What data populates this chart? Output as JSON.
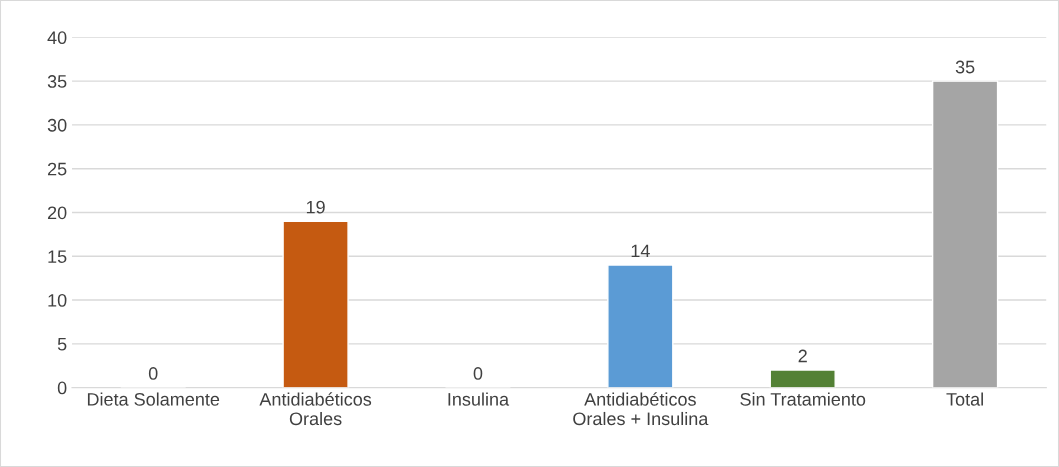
{
  "chart_data": {
    "type": "bar",
    "categories": [
      "Dieta Solamente",
      "Antidiabéticos\nOrales",
      "Insulina",
      "Antidiabéticos\nOrales + Insulina",
      "Sin Tratamiento",
      "Total"
    ],
    "values": [
      0,
      19,
      0,
      14,
      2,
      35
    ],
    "colors": [
      null,
      "#c55a11",
      null,
      "#5b9bd5",
      "#538135",
      "#a5a5a5"
    ],
    "ylim": [
      0,
      40
    ],
    "yticks": [
      0,
      5,
      10,
      15,
      20,
      25,
      30,
      35,
      40
    ],
    "grid": "y",
    "data_labels": true,
    "legend": false
  }
}
